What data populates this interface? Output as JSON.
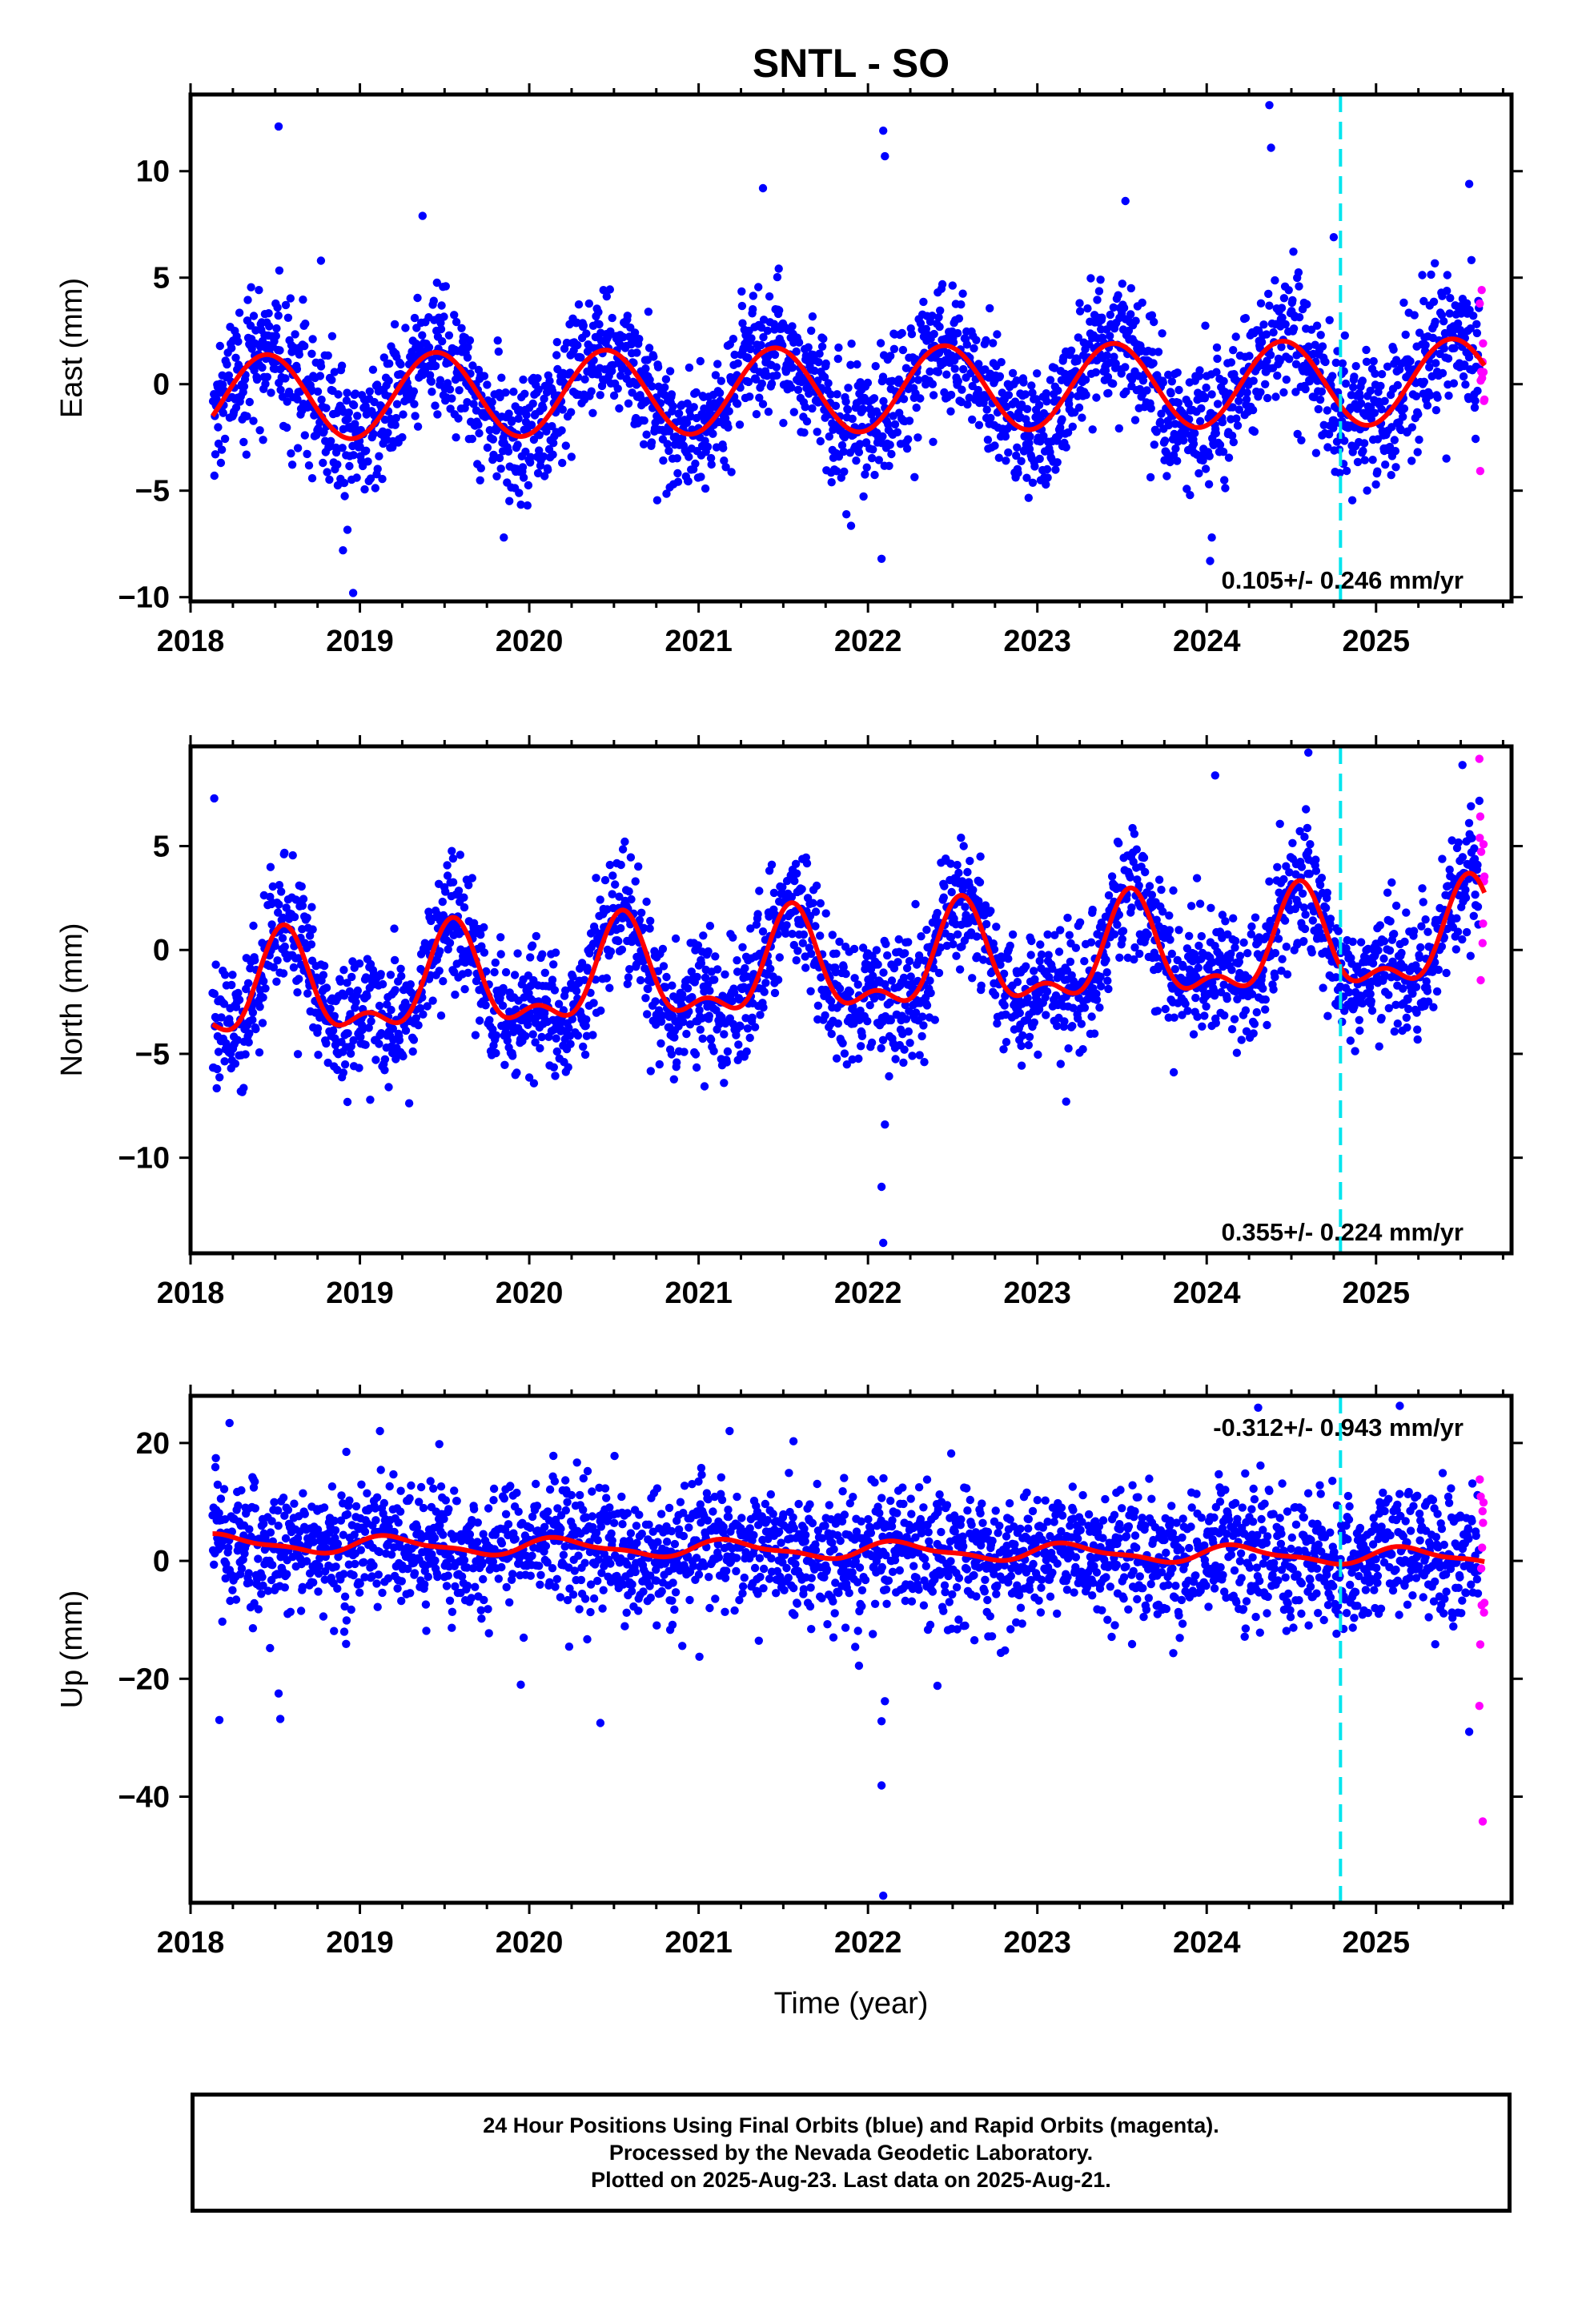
{
  "title": "SNTL - SO",
  "colors": {
    "final": "#0000ff",
    "rapid": "#ff00ff",
    "fit": "#ff0000",
    "marker": "#00e5ee",
    "frame": "#000000"
  },
  "chart_data": [
    {
      "type": "scatter",
      "component": "east",
      "ylabel": "East (mm)",
      "xlabel": "",
      "xlim": [
        2018.0,
        2025.8
      ],
      "ylim": [
        -10.2,
        13.6
      ],
      "yticks": [
        -10,
        -5,
        0,
        5,
        10
      ],
      "xticks": [
        2018,
        2019,
        2020,
        2021,
        2022,
        2023,
        2024,
        2025
      ],
      "rate_label": "0.105+/- 0.246 mm/yr",
      "rate_position": "bottom-right",
      "seasonal": {
        "offset": -0.25,
        "trend_per_yr": 0.105,
        "annual_amp": 2.0,
        "annual_peak": 0.45,
        "semiannual_amp": 0.0,
        "semiannual_peak": 0.0,
        "scatter": 1.5
      },
      "data_start": 2018.13,
      "data_end": 2025.64,
      "rapid_start": 2025.61,
      "equipment_change": 2024.79,
      "outliers": [
        [
          2018.52,
          12.1
        ],
        [
          2018.9,
          -7.8
        ],
        [
          2018.96,
          -9.8
        ],
        [
          2019.37,
          7.9
        ],
        [
          2021.38,
          9.2
        ],
        [
          2022.09,
          11.9
        ],
        [
          2022.1,
          10.7
        ],
        [
          2022.08,
          -8.2
        ],
        [
          2023.52,
          8.6
        ],
        [
          2024.37,
          13.1
        ],
        [
          2024.38,
          11.1
        ],
        [
          2024.03,
          -7.2
        ],
        [
          2024.02,
          -8.3
        ],
        [
          2025.55,
          9.4
        ],
        [
          2019.85,
          -7.2
        ],
        [
          2018.77,
          5.8
        ],
        [
          2024.75,
          6.9
        ]
      ]
    },
    {
      "type": "scatter",
      "component": "north",
      "ylabel": "North (mm)",
      "xlabel": "",
      "xlim": [
        2018.0,
        2025.8
      ],
      "ylim": [
        -14.6,
        9.8
      ],
      "yticks": [
        -10,
        -5,
        0,
        5
      ],
      "xticks": [
        2018,
        2019,
        2020,
        2021,
        2022,
        2023,
        2024,
        2025
      ],
      "rate_label": "0.355+/- 0.224 mm/yr",
      "rate_position": "bottom-right",
      "seasonal": {
        "offset": -0.9,
        "trend_per_yr": 0.355,
        "annual_amp": 2.2,
        "annual_peak": 0.55,
        "semiannual_amp": 1.1,
        "semiannual_peak": 0.05,
        "scatter": 1.5
      },
      "data_start": 2018.13,
      "data_end": 2025.64,
      "rapid_start": 2025.61,
      "equipment_change": 2024.79,
      "outliers": [
        [
          2018.14,
          7.3
        ],
        [
          2022.08,
          -11.4
        ],
        [
          2022.09,
          -14.1
        ],
        [
          2022.1,
          -8.4
        ],
        [
          2024.05,
          8.4
        ],
        [
          2024.6,
          9.5
        ],
        [
          2025.51,
          8.9
        ],
        [
          2025.61,
          9.2
        ],
        [
          2019.17,
          -6.6
        ],
        [
          2023.17,
          -7.3
        ],
        [
          2019.55,
          4.4
        ],
        [
          2021.15,
          -6.4
        ]
      ]
    },
    {
      "type": "scatter",
      "component": "up",
      "ylabel": "Up (mm)",
      "xlabel": "Time (year)",
      "xlim": [
        2018.0,
        2025.8
      ],
      "ylim": [
        -58.0,
        28.0
      ],
      "yticks": [
        -40,
        -20,
        0,
        20
      ],
      "xticks": [
        2018,
        2019,
        2020,
        2021,
        2022,
        2023,
        2024,
        2025
      ],
      "rate_label": "-0.312+/- 0.943 mm/yr",
      "rate_position": "top-right",
      "seasonal": {
        "offset": 1.8,
        "trend_per_yr": -0.312,
        "annual_amp": 1.3,
        "annual_peak": 0.2,
        "semiannual_amp": 0.5,
        "semiannual_peak": 0.1,
        "scatter": 5.5
      },
      "data_start": 2018.13,
      "data_end": 2025.64,
      "rapid_start": 2025.61,
      "equipment_change": 2024.79,
      "outliers": [
        [
          2018.17,
          -27.0
        ],
        [
          2018.23,
          23.4
        ],
        [
          2018.53,
          -26.8
        ],
        [
          2018.52,
          -22.5
        ],
        [
          2020.42,
          -27.5
        ],
        [
          2022.08,
          -27.2
        ],
        [
          2022.08,
          -38.1
        ],
        [
          2022.09,
          -56.8
        ],
        [
          2022.1,
          -23.8
        ],
        [
          2022.41,
          -21.2
        ],
        [
          2025.14,
          26.3
        ],
        [
          2025.63,
          -44.2
        ],
        [
          2025.55,
          -29.0
        ],
        [
          2025.61,
          -24.6
        ],
        [
          2021.56,
          20.3
        ],
        [
          2019.95,
          -21.0
        ],
        [
          2018.92,
          18.5
        ]
      ]
    }
  ],
  "footer": {
    "line1": "24 Hour Positions Using Final Orbits (blue) and Rapid Orbits (magenta).",
    "line2": "Processed by the Nevada Geodetic Laboratory.",
    "line3": "Plotted on 2025-Aug-23. Last data on 2025-Aug-21."
  }
}
